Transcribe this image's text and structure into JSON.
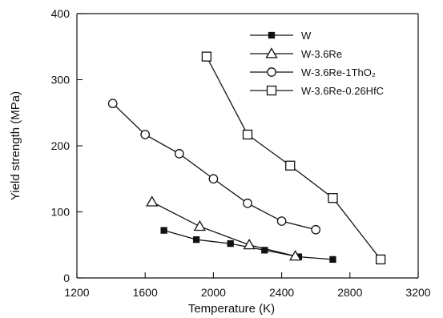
{
  "chart_data": {
    "type": "line",
    "xlabel": "Temperature (K)",
    "ylabel": "Yield strength (MPa)",
    "xlim": [
      1200,
      3200
    ],
    "ylim": [
      0,
      400
    ],
    "xticks": [
      1200,
      1600,
      2000,
      2400,
      2800,
      3200
    ],
    "yticks": [
      0,
      100,
      200,
      300,
      400
    ],
    "legend_position": "top-right",
    "grid": false,
    "series": [
      {
        "name": "W",
        "marker": "filled-square",
        "x": [
          1710,
          1900,
          2100,
          2300,
          2500,
          2700
        ],
        "y": [
          72,
          58,
          52,
          42,
          32,
          28
        ]
      },
      {
        "name": "W-3.6Re",
        "marker": "open-triangle",
        "x": [
          1640,
          1920,
          2210,
          2480
        ],
        "y": [
          115,
          78,
          50,
          33
        ]
      },
      {
        "name": "W-3.6Re-1ThO₂",
        "marker": "open-circle",
        "x": [
          1410,
          1600,
          1800,
          2000,
          2200,
          2400,
          2600
        ],
        "y": [
          264,
          217,
          188,
          150,
          113,
          86,
          73
        ]
      },
      {
        "name": "W-3.6Re-0.26HfC",
        "marker": "open-square",
        "x": [
          1960,
          2200,
          2450,
          2700,
          2980
        ],
        "y": [
          335,
          217,
          170,
          121,
          28
        ]
      }
    ]
  }
}
